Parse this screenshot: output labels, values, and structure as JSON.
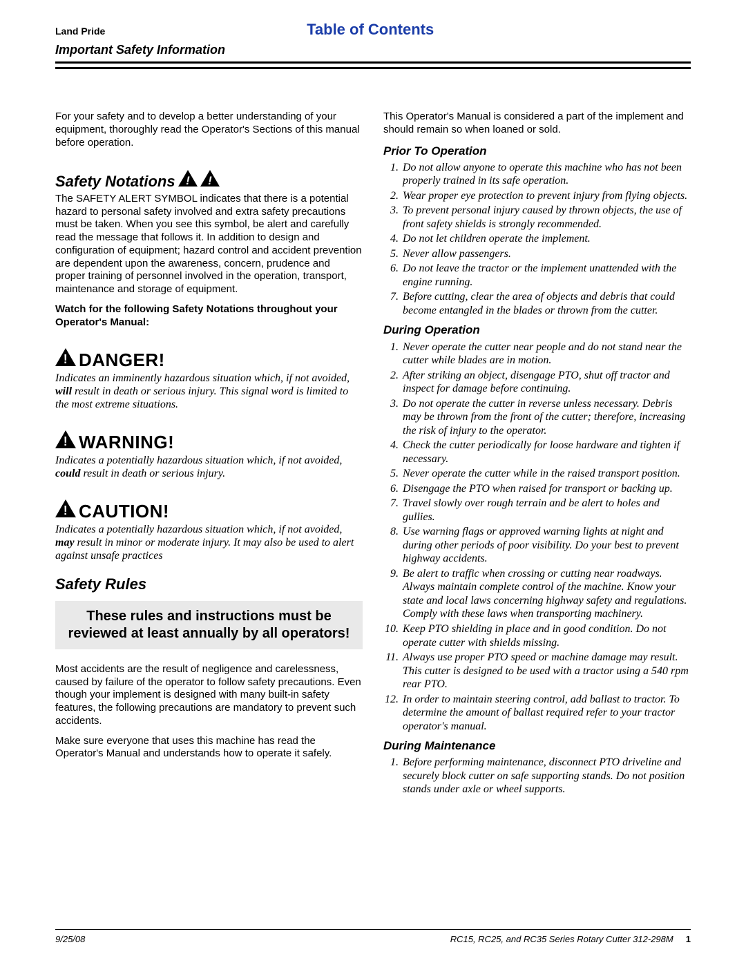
{
  "header": {
    "brand": "Land Pride",
    "toc": "Table of Contents",
    "subtitle": "Important Safety Information",
    "toc_color": "#1a3ca8"
  },
  "intro_left": "For your safety and to develop a better understanding of your equipment, thoroughly read the Operator's Sections of this manual before operation.",
  "intro_right": "This Operator's Manual is considered a part of the implement and should remain so when loaned or sold.",
  "safety_notations": {
    "heading": "Safety Notations",
    "body": "The SAFETY ALERT SYMBOL indicates that there is a potential hazard to personal safety involved and extra safety precautions must be taken. When you see this symbol, be alert and carefully read the message that follows it. In addition to design and configuration of equipment; hazard control and accident prevention are dependent upon the awareness, concern, prudence and proper training of personnel involved in the operation, transport, maintenance and storage of equipment.",
    "watch": "Watch for the following Safety Notations throughout your Operator's Manual:"
  },
  "notations": [
    {
      "title": "DANGER!",
      "desc_pre": "Indicates an imminently hazardous situation which, if not avoided, ",
      "desc_bold": "will",
      "desc_post": " result in death or serious injury. This signal word is limited to the most extreme situations."
    },
    {
      "title": "WARNING!",
      "desc_pre": "Indicates a potentially hazardous situation which, if not avoided, ",
      "desc_bold": "could",
      "desc_post": " result in death or serious injury."
    },
    {
      "title": "CAUTION!",
      "desc_pre": "Indicates a potentially hazardous situation which, if not avoided, ",
      "desc_bold": "may",
      "desc_post": " result in minor or moderate injury. It may also be used to alert against unsafe practices"
    }
  ],
  "safety_rules": {
    "heading": "Safety Rules",
    "review_box": "These rules and instructions must be reviewed at least annually by all operators!",
    "p1": "Most accidents are the result of negligence and carelessness, caused by failure of the operator to follow safety precautions. Even though your implement is designed with many built-in safety features, the following precautions are mandatory to prevent such accidents.",
    "p2": "Make sure everyone that uses this machine has read the Operator's Manual and understands how to operate it safely."
  },
  "sections": [
    {
      "title": "Prior To Operation",
      "items": [
        "Do not allow anyone to operate this machine who has not been properly trained in its safe operation.",
        "Wear proper eye protection to prevent injury from flying objects.",
        "To prevent personal injury caused by thrown objects, the use of front safety shields is strongly recommended.",
        "Do not let children operate the implement.",
        "Never allow passengers.",
        "Do not leave the tractor or the implement unattended with the engine running.",
        "Before cutting, clear the area of objects and debris that could become entangled in the blades or thrown from the cutter."
      ]
    },
    {
      "title": "During Operation",
      "items": [
        "Never operate the cutter near people and do not stand near the cutter while blades are in motion.",
        "After striking an object, disengage PTO, shut off tractor and inspect for damage before continuing.",
        "Do not operate the cutter in reverse unless necessary. Debris may be thrown from the front of the cutter; therefore, increasing the risk of injury to the operator.",
        "Check the cutter periodically for loose hardware and tighten if necessary.",
        "Never operate the cutter while in the raised transport position.",
        "Disengage the PTO when raised for transport or backing up.",
        "Travel slowly over rough terrain and be alert to holes and gullies.",
        "Use warning flags or approved warning lights at night and during other periods of poor visibility. Do your best to prevent highway accidents.",
        "Be alert to traffic when crossing or cutting near roadways. Always maintain complete control of the machine. Know your state and local laws concerning highway safety and regulations. Comply with these laws when transporting machinery.",
        "Keep PTO shielding in place and in good condition. Do not operate cutter with shields missing.",
        "Always use proper PTO speed or machine damage may result. This cutter is designed to be used with a tractor using a 540 rpm rear PTO.",
        "In order to maintain steering control, add ballast to tractor. To determine the amount of ballast required refer to your tractor operator's manual."
      ]
    },
    {
      "title": "During Maintenance",
      "items": [
        "Before performing maintenance, disconnect PTO driveline and securely block cutter on safe supporting stands. Do not position stands under axle or wheel supports."
      ]
    }
  ],
  "footer": {
    "date": "9/25/08",
    "doc": "RC15, RC25, and RC35 Series Rotary Cutter   312-298M",
    "page": "1"
  },
  "icons": {
    "triangle_fill": "#000000",
    "bang_color": "#ffffff"
  }
}
